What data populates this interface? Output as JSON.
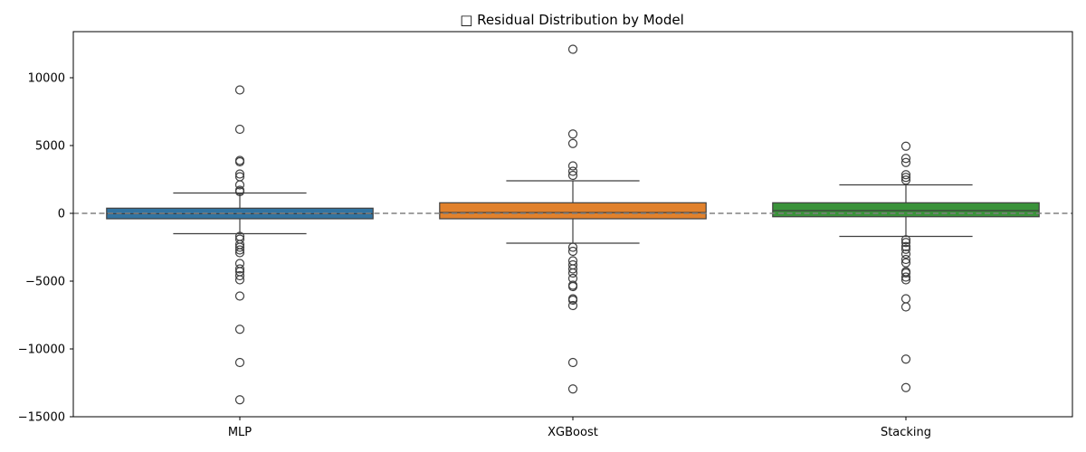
{
  "chart_data": {
    "type": "boxplot",
    "title": "□ Residual Distribution by Model",
    "xlabel": "",
    "ylabel": "",
    "ylim": [
      -15000,
      13400
    ],
    "yticks": [
      -15000,
      -10000,
      -5000,
      0,
      5000,
      10000
    ],
    "ytick_labels": [
      "−15000",
      "−10000",
      "−5000",
      "0",
      "5000",
      "10000"
    ],
    "grid": false,
    "legend": "none",
    "reference_line": {
      "y": 0,
      "style": "dashed",
      "color": "#808080"
    },
    "categories": [
      "MLP",
      "XGBoost",
      "Stacking"
    ],
    "boxes": [
      {
        "name": "MLP",
        "color": "#3274a1",
        "q1": -400,
        "median": -30,
        "q3": 380,
        "whisker_low": -1500,
        "whisker_high": 1500,
        "outliers": [
          9100,
          6200,
          3900,
          3800,
          2900,
          2700,
          2100,
          1700,
          1600,
          -1700,
          -1900,
          -2300,
          -2500,
          -2700,
          -2900,
          -3700,
          -4100,
          -4300,
          -4600,
          -4900,
          -6100,
          -8550,
          -11000,
          -13750
        ]
      },
      {
        "name": "XGBoost",
        "color": "#e1812c",
        "q1": -400,
        "median": 60,
        "q3": 780,
        "whisker_low": -2200,
        "whisker_high": 2400,
        "outliers": [
          12100,
          5850,
          5150,
          3500,
          3100,
          2800,
          -2500,
          -2800,
          -3500,
          -3800,
          -4100,
          -4400,
          -4800,
          -5300,
          -5400,
          -6300,
          -6400,
          -6800,
          -11000,
          -12950
        ]
      },
      {
        "name": "Stacking",
        "color": "#3a923a",
        "q1": -250,
        "median": 200,
        "q3": 780,
        "whisker_low": -1700,
        "whisker_high": 2100,
        "outliers": [
          4950,
          4050,
          3750,
          2850,
          2650,
          2450,
          -1950,
          -2150,
          -2450,
          -2650,
          -3000,
          -3400,
          -3650,
          -4300,
          -4400,
          -4700,
          -4900,
          -6300,
          -6900,
          -10750,
          -12850
        ]
      }
    ]
  }
}
